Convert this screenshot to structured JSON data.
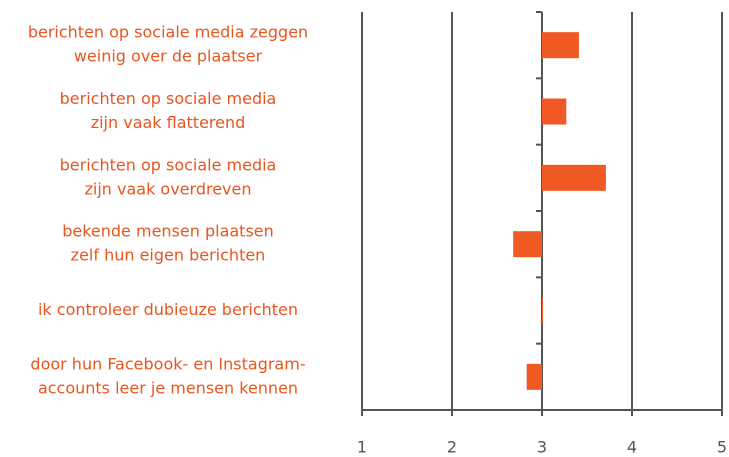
{
  "chart_data": {
    "type": "bar",
    "orientation": "horizontal",
    "categories": [
      [
        "berichten op sociale media zeggen",
        "weinig over de plaatser"
      ],
      [
        "berichten op sociale media",
        "zijn vaak flatterend"
      ],
      [
        "berichten op sociale media",
        "zijn vaak overdreven"
      ],
      [
        "bekende mensen plaatsen",
        "zelf hun eigen berichten"
      ],
      [
        "ik controleer dubieuze berichten"
      ],
      [
        "door hun Facebook- en Instagram-",
        "accounts leer je mensen kennen"
      ]
    ],
    "values": [
      3.41,
      3.27,
      3.71,
      2.68,
      3.01,
      2.83
    ],
    "color": "#f05a22",
    "label_color": "#e8561f",
    "xlim": [
      1,
      5
    ],
    "xticks": [
      1,
      2,
      3,
      4,
      5
    ],
    "grid": true
  }
}
